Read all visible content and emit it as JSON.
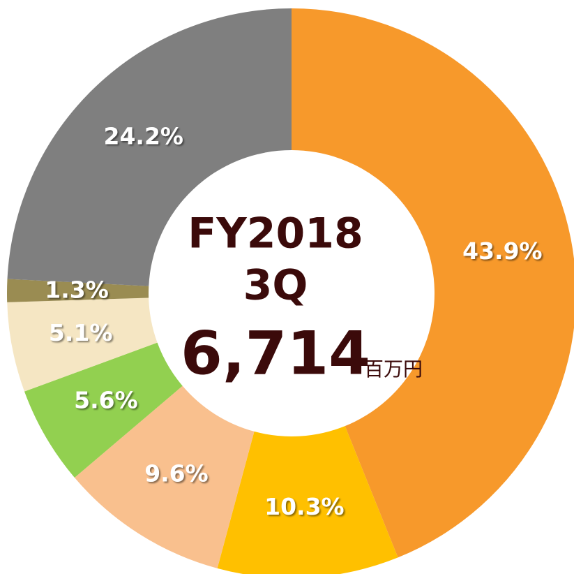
{
  "chart_data": {
    "type": "donut",
    "title": "FY2018",
    "subtitle": "3Q",
    "total_label": "6,714",
    "unit": "百万円",
    "values": [
      43.9,
      10.3,
      9.6,
      5.6,
      5.1,
      1.3,
      24.2
    ],
    "value_labels": [
      "43.9%",
      "10.3%",
      "9.6%",
      "5.6%",
      "5.1%",
      "1.3%",
      "24.2%"
    ],
    "colors": [
      "#F7992B",
      "#FFC000",
      "#F9C08E",
      "#92D050",
      "#F5E6C3",
      "#9A8C52",
      "#7F7F7F"
    ]
  }
}
